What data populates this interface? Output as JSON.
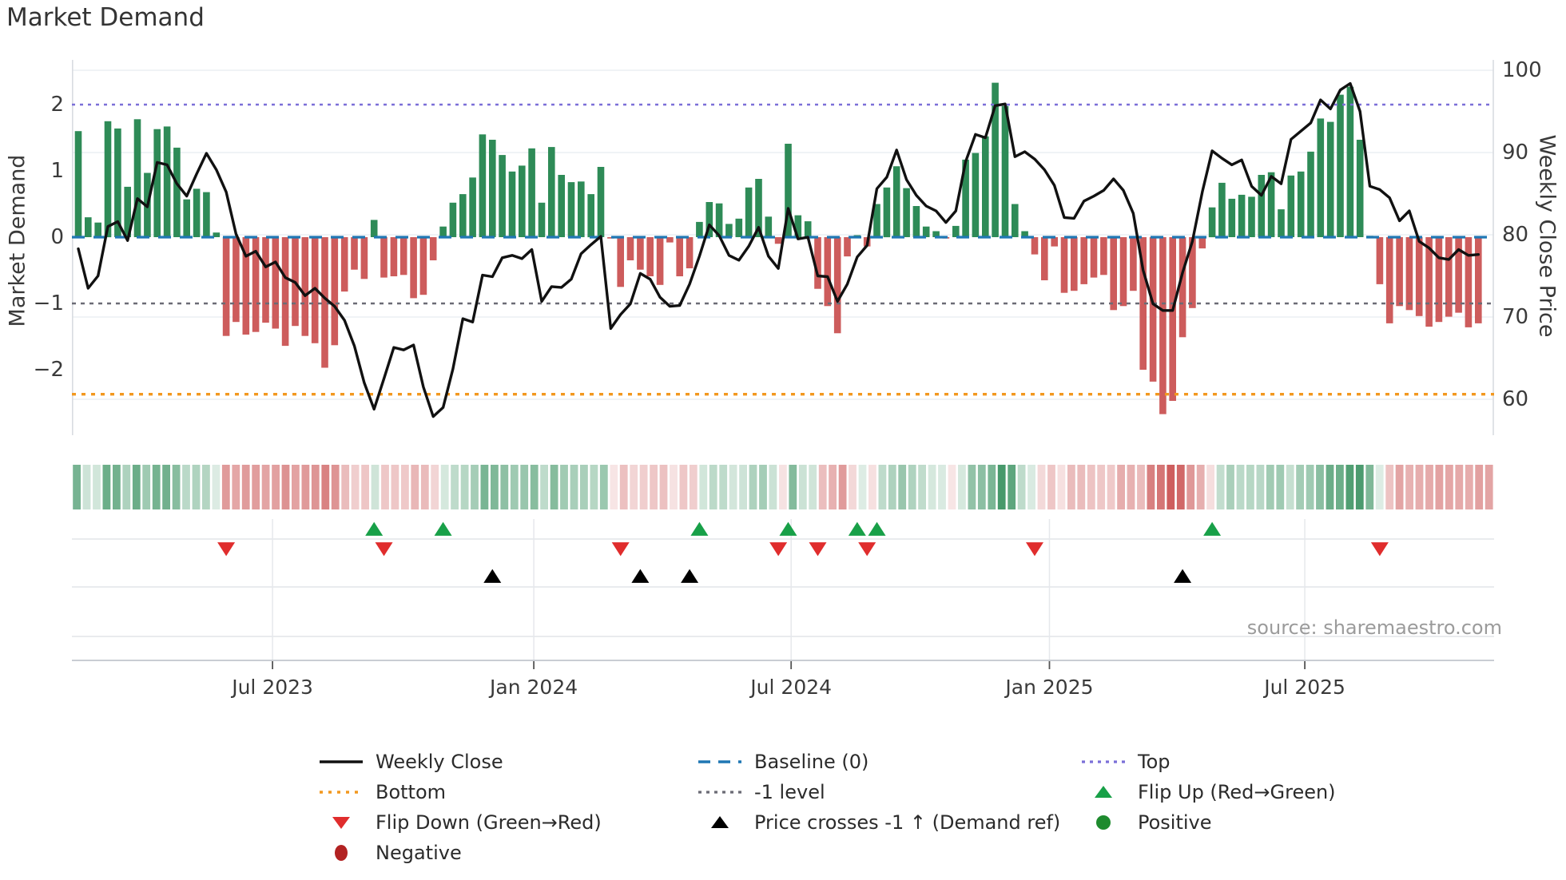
{
  "title": "Market Demand",
  "source_credit": "source: sharemaestro.com",
  "y_left_axis": {
    "label": "Market Demand",
    "ticks": [
      {
        "text": "2",
        "value": 2
      },
      {
        "text": "1",
        "value": 1
      },
      {
        "text": "0",
        "value": 0
      },
      {
        "text": "−1",
        "value": -1
      },
      {
        "text": "−2",
        "value": -2
      }
    ]
  },
  "y_right_axis": {
    "label": "Weekly Close Price",
    "ticks": [
      {
        "text": "100",
        "value": 100
      },
      {
        "text": "90",
        "value": 90
      },
      {
        "text": "80",
        "value": 80
      },
      {
        "text": "70",
        "value": 70
      },
      {
        "text": "60",
        "value": 60
      }
    ]
  },
  "colors": {
    "bar_positive": "#2E8B57",
    "bar_negative": "#CD5C5C",
    "price_line": "#111111",
    "baseline": "#1F77B4",
    "top_line": "#7B6FD8",
    "minus1_line": "#6B6B75",
    "bottom_line": "#F2981F",
    "flip_up": "#18A048",
    "flip_down": "#E02D2D",
    "price_cross": "#000000",
    "positive_dot": "#1E8B2E",
    "negative_dot": "#B22222",
    "grid": "#ECEFF3",
    "panel_grid": "#E6E8EC",
    "axis_line": "#C9CDD3"
  },
  "legend": {
    "items": [
      {
        "label": "Weekly Close",
        "swatch": "solid-line",
        "col": 0,
        "row": 0
      },
      {
        "label": "Bottom",
        "swatch": "dots-orange",
        "col": 0,
        "row": 1
      },
      {
        "label": "Flip Down (Green→Red)",
        "swatch": "tri-down-red",
        "col": 0,
        "row": 2
      },
      {
        "label": "Negative",
        "swatch": "dot-darkred",
        "col": 0,
        "row": 3
      },
      {
        "label": "Baseline (0)",
        "swatch": "dashes-blue",
        "col": 1,
        "row": 0
      },
      {
        "label": "-1 level",
        "swatch": "dots-gray",
        "col": 1,
        "row": 1
      },
      {
        "label": "Price crosses -1 ↑ (Demand ref)",
        "swatch": "tri-up-black",
        "col": 1,
        "row": 2
      },
      {
        "label": "Top",
        "swatch": "dots-purple",
        "col": 2,
        "row": 0
      },
      {
        "label": "Flip Up (Red→Green)",
        "swatch": "tri-up-green",
        "col": 2,
        "row": 1
      },
      {
        "label": "Positive",
        "swatch": "dot-green",
        "col": 2,
        "row": 2
      }
    ]
  },
  "chart_data": {
    "type": "bar",
    "subtype": "weekly bar + line overlay + heatmap strip + event marker rows",
    "n_points": 143,
    "x_unit": "week (weekly data, ~Feb 2023 to Nov 2025)",
    "x_ticks": [
      {
        "label": "Jul 2023",
        "week": 19.7
      },
      {
        "label": "Jan 2024",
        "week": 46.2
      },
      {
        "label": "Jul 2024",
        "week": 72.3
      },
      {
        "label": "Jan 2025",
        "week": 98.5
      },
      {
        "label": "Jul 2025",
        "week": 124.4
      }
    ],
    "ylabel": "Market Demand",
    "ylabel_right": "Weekly Close Price",
    "ylim_left": [
      -3.0,
      2.6
    ],
    "ylim_right": [
      56.5,
      101.5
    ],
    "grid": "light horizontal gridlines at right-axis ticks",
    "legend_position": "below chart, 3 columns",
    "levels": {
      "top": 2.0,
      "baseline": 0.0,
      "minus1": -1.0,
      "bottom": -2.37
    },
    "series": [
      {
        "name": "Market Demand",
        "type": "bar",
        "values": [
          1.6,
          0.3,
          0.22,
          1.75,
          1.64,
          0.76,
          1.78,
          0.97,
          1.63,
          1.67,
          1.35,
          0.57,
          0.73,
          0.68,
          0.07,
          -1.49,
          -1.28,
          -1.47,
          -1.43,
          -1.29,
          -1.38,
          -1.64,
          -1.34,
          -1.49,
          -1.6,
          -1.97,
          -1.63,
          -0.82,
          -0.49,
          -0.63,
          0.26,
          -0.61,
          -0.59,
          -0.57,
          -0.92,
          -0.87,
          -0.35,
          0.16,
          0.52,
          0.65,
          0.9,
          1.55,
          1.47,
          1.24,
          0.99,
          1.08,
          1.34,
          0.52,
          1.36,
          0.94,
          0.83,
          0.84,
          0.65,
          1.06,
          -0.02,
          -0.75,
          -0.35,
          -0.49,
          -0.59,
          -0.72,
          -0.08,
          -0.59,
          -0.47,
          0.23,
          0.53,
          0.51,
          0.2,
          0.28,
          0.75,
          0.88,
          0.31,
          -0.1,
          1.41,
          0.33,
          0.24,
          -0.78,
          -1.04,
          -1.45,
          -0.29,
          0.03,
          -0.14,
          0.5,
          0.75,
          1.07,
          0.74,
          0.47,
          0.16,
          0.09,
          -0.02,
          0.17,
          1.17,
          1.27,
          1.52,
          2.33,
          1.98,
          0.5,
          0.09,
          -0.26,
          -0.65,
          -0.14,
          -0.84,
          -0.81,
          -0.71,
          -0.61,
          -0.57,
          -1.1,
          -1.04,
          -0.81,
          -2.0,
          -2.18,
          -2.67,
          -2.47,
          -1.51,
          -1.07,
          -0.17,
          0.45,
          0.82,
          0.58,
          0.64,
          0.61,
          0.94,
          0.98,
          0.42,
          0.93,
          0.99,
          1.29,
          1.79,
          1.74,
          2.15,
          2.27,
          1.47,
          0.02,
          -0.71,
          -1.3,
          -1.04,
          -1.1,
          -1.19,
          -1.35,
          -1.28,
          -1.2,
          -1.14,
          -1.36,
          -1.3
        ]
      },
      {
        "name": "Weekly Close",
        "type": "line",
        "values": [
          78.3,
          73.5,
          75.0,
          81.0,
          81.6,
          79.3,
          84.4,
          83.4,
          88.8,
          88.5,
          86.2,
          84.7,
          87.4,
          89.9,
          87.9,
          85.2,
          80.1,
          77.4,
          78.0,
          76.1,
          76.7,
          74.8,
          74.2,
          72.6,
          73.5,
          72.3,
          71.3,
          69.6,
          66.5,
          62.0,
          58.8,
          62.5,
          66.3,
          66.0,
          66.6,
          61.5,
          57.9,
          59.0,
          63.7,
          69.8,
          69.4,
          75.1,
          74.9,
          77.2,
          77.5,
          77.1,
          78.2,
          71.9,
          73.7,
          73.6,
          74.6,
          77.7,
          78.8,
          79.8,
          68.6,
          70.3,
          71.6,
          75.3,
          74.6,
          72.4,
          71.3,
          71.4,
          74.0,
          77.4,
          81.2,
          79.9,
          77.5,
          76.9,
          78.6,
          80.9,
          77.4,
          75.9,
          83.2,
          79.5,
          79.7,
          75.0,
          74.9,
          71.9,
          74.0,
          77.3,
          78.7,
          85.6,
          87.0,
          90.3,
          86.7,
          84.8,
          83.5,
          82.9,
          81.5,
          82.9,
          88.9,
          92.2,
          91.8,
          95.7,
          95.9,
          89.5,
          90.1,
          89.2,
          87.9,
          86.0,
          82.1,
          82.0,
          84.1,
          84.7,
          85.4,
          86.8,
          85.4,
          82.6,
          75.7,
          71.6,
          70.8,
          70.8,
          75.4,
          79.2,
          85.2,
          90.2,
          89.3,
          88.5,
          89.1,
          85.9,
          84.8,
          87.1,
          86.2,
          91.6,
          92.6,
          93.6,
          96.4,
          95.3,
          97.6,
          98.4,
          95.0,
          85.9,
          85.5,
          84.5,
          81.7,
          82.9,
          79.2,
          78.4,
          77.2,
          77.0,
          78.2,
          77.5,
          77.6
        ]
      }
    ],
    "markers": {
      "flip_up_weeks": [
        30,
        37,
        63,
        72,
        79,
        81,
        115
      ],
      "flip_down_weeks": [
        15,
        31,
        55,
        71,
        75,
        80,
        97,
        132
      ],
      "price_cross_minus1_weeks": [
        42,
        57,
        62,
        112
      ]
    },
    "heatmap_strip": {
      "derived_from": "Market Demand values, color intensity scales with |value|",
      "positive_color": "#2E8B57",
      "negative_color": "#CD5C5C"
    }
  }
}
